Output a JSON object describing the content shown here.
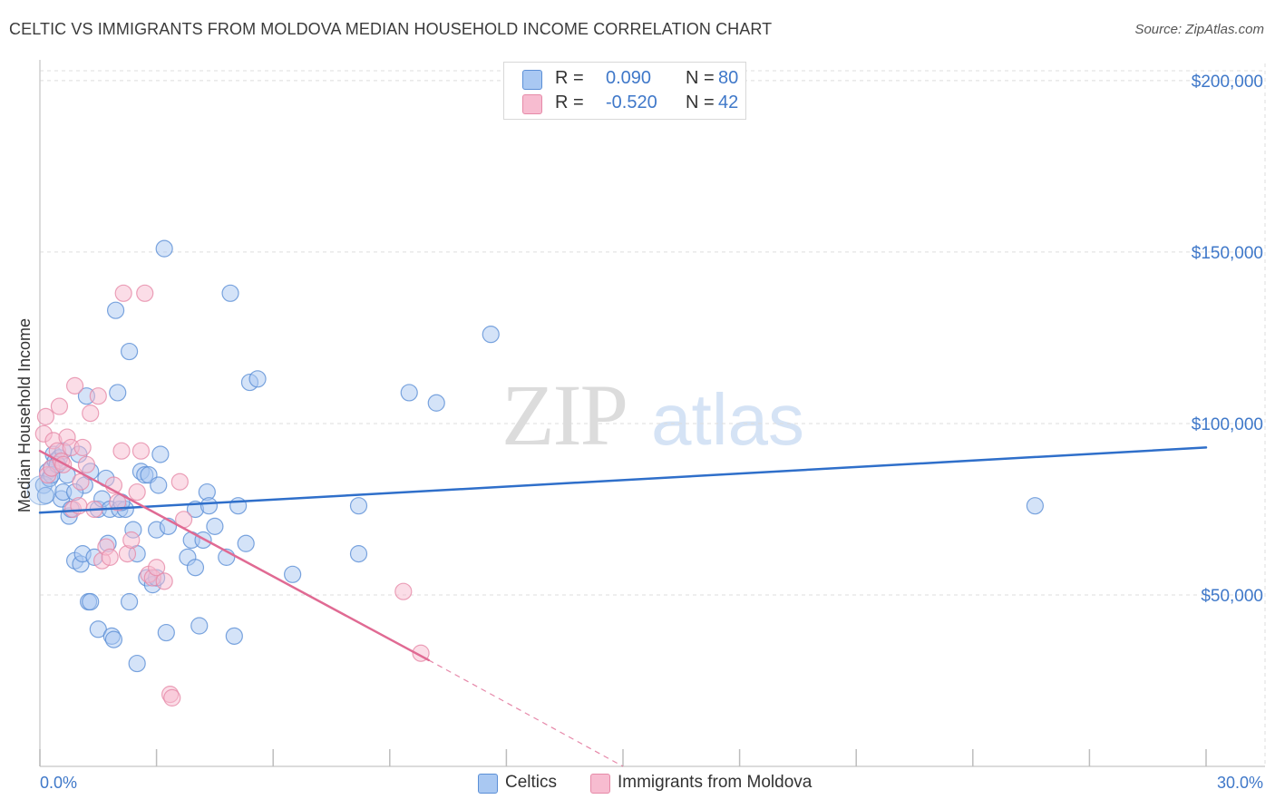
{
  "header": {
    "title": "CELTIC VS IMMIGRANTS FROM MOLDOVA MEDIAN HOUSEHOLD INCOME CORRELATION CHART",
    "source": "Source: ZipAtlas.com"
  },
  "watermark": {
    "zip": "ZIP",
    "atlas": "atlas"
  },
  "legend_top": [
    {
      "r_label": "R =",
      "r_value": "0.090",
      "n_label": "N =",
      "n_value": "80"
    },
    {
      "r_label": "R =",
      "r_value": "-0.520",
      "n_label": "N =",
      "n_value": "42"
    }
  ],
  "legend_bottom": [
    "Celtics",
    "Immigrants from Moldova"
  ],
  "colors": {
    "celtics_fill": "#a9c8f2",
    "celtics_stroke": "#5b8fd6",
    "celtics_line": "#2f6fca",
    "moldova_fill": "#f7bcd0",
    "moldova_stroke": "#e68aa8",
    "moldova_line": "#e06a93",
    "accent_text": "#3f78c9",
    "grid": "#dddddd"
  },
  "chart_data": {
    "type": "scatter",
    "title": "CELTIC VS IMMIGRANTS FROM MOLDOVA MEDIAN HOUSEHOLD INCOME CORRELATION CHART",
    "xlabel": "",
    "ylabel": "Median Household Income",
    "xlim": [
      0,
      30
    ],
    "ylim": [
      0,
      205000
    ],
    "x_tick_labels": [
      "0.0%",
      "30.0%"
    ],
    "y_ticks": [
      50000,
      100000,
      150000,
      200000
    ],
    "y_tick_labels": [
      "$50,000",
      "$100,000",
      "$150,000",
      "$200,000"
    ],
    "grid": true,
    "series": [
      {
        "name": "Celtics",
        "r": 0.09,
        "n": 80,
        "trend": {
          "x": [
            0,
            30
          ],
          "y": [
            74000,
            93000
          ],
          "dashed_to": null
        },
        "points": [
          [
            0.1,
            82000
          ],
          [
            0.15,
            79000
          ],
          [
            0.2,
            86000
          ],
          [
            0.25,
            84000
          ],
          [
            0.3,
            87000
          ],
          [
            0.35,
            91000
          ],
          [
            0.4,
            89000
          ],
          [
            0.5,
            90000
          ],
          [
            0.55,
            78000
          ],
          [
            0.6,
            80000
          ],
          [
            0.7,
            85000
          ],
          [
            0.75,
            73000
          ],
          [
            0.8,
            75000
          ],
          [
            0.9,
            60000
          ],
          [
            1.0,
            91000
          ],
          [
            1.05,
            59000
          ],
          [
            1.1,
            62000
          ],
          [
            1.15,
            82000
          ],
          [
            1.2,
            108000
          ],
          [
            1.25,
            48000
          ],
          [
            1.3,
            48000
          ],
          [
            1.4,
            61000
          ],
          [
            1.5,
            75000
          ],
          [
            1.5,
            40000
          ],
          [
            1.6,
            78000
          ],
          [
            1.7,
            84000
          ],
          [
            1.75,
            65000
          ],
          [
            1.8,
            75000
          ],
          [
            1.85,
            38000
          ],
          [
            1.9,
            37000
          ],
          [
            1.95,
            133000
          ],
          [
            2.0,
            109000
          ],
          [
            2.05,
            75000
          ],
          [
            2.2,
            75000
          ],
          [
            2.3,
            121000
          ],
          [
            2.3,
            48000
          ],
          [
            2.4,
            69000
          ],
          [
            2.5,
            62000
          ],
          [
            2.5,
            30000
          ],
          [
            2.6,
            86000
          ],
          [
            2.7,
            85000
          ],
          [
            2.75,
            55000
          ],
          [
            2.8,
            85000
          ],
          [
            2.9,
            53000
          ],
          [
            3.0,
            69000
          ],
          [
            3.05,
            82000
          ],
          [
            3.1,
            91000
          ],
          [
            3.2,
            151000
          ],
          [
            3.25,
            39000
          ],
          [
            3.3,
            70000
          ],
          [
            3.8,
            61000
          ],
          [
            3.9,
            66000
          ],
          [
            4.0,
            58000
          ],
          [
            4.0,
            75000
          ],
          [
            4.1,
            41000
          ],
          [
            4.3,
            80000
          ],
          [
            4.35,
            76000
          ],
          [
            4.5,
            70000
          ],
          [
            4.8,
            61000
          ],
          [
            4.9,
            138000
          ],
          [
            5.0,
            38000
          ],
          [
            5.1,
            76000
          ],
          [
            5.3,
            65000
          ],
          [
            5.4,
            112000
          ],
          [
            5.6,
            113000
          ],
          [
            6.5,
            56000
          ],
          [
            8.2,
            62000
          ],
          [
            8.2,
            76000
          ],
          [
            9.5,
            109000
          ],
          [
            10.2,
            106000
          ],
          [
            11.6,
            126000
          ],
          [
            25.6,
            76000
          ],
          [
            0.3,
            85000
          ],
          [
            0.6,
            92000
          ],
          [
            1.3,
            86000
          ],
          [
            2.1,
            77000
          ],
          [
            3.0,
            55000
          ],
          [
            4.2,
            66000
          ],
          [
            0.45,
            88000
          ],
          [
            0.9,
            80000
          ]
        ]
      },
      {
        "name": "Immigrants from Moldova",
        "r": -0.52,
        "n": 42,
        "trend": {
          "x": [
            0,
            10
          ],
          "y": [
            92000,
            31000
          ],
          "dashed_to": [
            15,
            0
          ]
        },
        "points": [
          [
            0.1,
            97000
          ],
          [
            0.15,
            102000
          ],
          [
            0.2,
            85000
          ],
          [
            0.3,
            87000
          ],
          [
            0.35,
            95000
          ],
          [
            0.45,
            92000
          ],
          [
            0.5,
            105000
          ],
          [
            0.55,
            89000
          ],
          [
            0.6,
            88000
          ],
          [
            0.7,
            96000
          ],
          [
            0.8,
            93000
          ],
          [
            0.85,
            75000
          ],
          [
            0.9,
            111000
          ],
          [
            1.0,
            76000
          ],
          [
            1.05,
            83000
          ],
          [
            1.1,
            93000
          ],
          [
            1.2,
            88000
          ],
          [
            1.3,
            103000
          ],
          [
            1.4,
            75000
          ],
          [
            1.5,
            108000
          ],
          [
            1.6,
            60000
          ],
          [
            1.7,
            64000
          ],
          [
            1.8,
            61000
          ],
          [
            1.9,
            82000
          ],
          [
            2.0,
            77000
          ],
          [
            2.1,
            92000
          ],
          [
            2.15,
            138000
          ],
          [
            2.25,
            62000
          ],
          [
            2.35,
            66000
          ],
          [
            2.5,
            80000
          ],
          [
            2.6,
            92000
          ],
          [
            2.7,
            138000
          ],
          [
            2.8,
            56000
          ],
          [
            2.9,
            55000
          ],
          [
            3.0,
            58000
          ],
          [
            3.2,
            54000
          ],
          [
            3.35,
            21000
          ],
          [
            3.4,
            20000
          ],
          [
            3.6,
            83000
          ],
          [
            3.7,
            72000
          ],
          [
            9.35,
            51000
          ],
          [
            9.8,
            33000
          ]
        ]
      }
    ]
  }
}
